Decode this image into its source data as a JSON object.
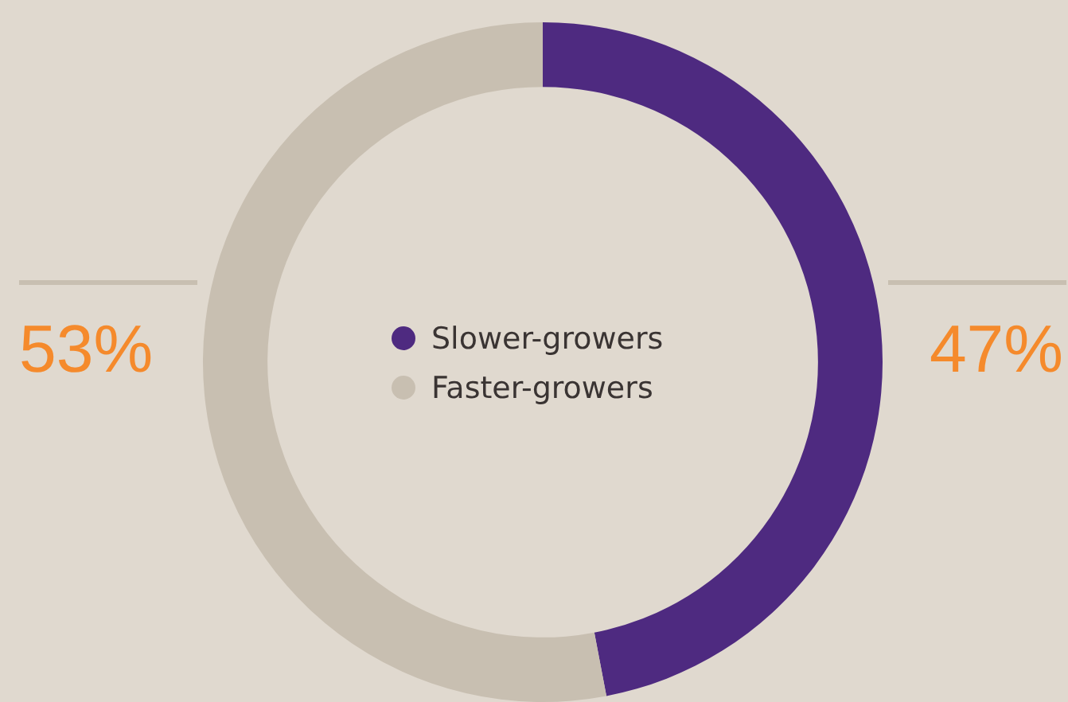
{
  "chart_data": {
    "type": "donut",
    "categories": [
      "Slower-growers",
      "Faster-growers"
    ],
    "values": [
      47,
      53
    ],
    "colors": [
      "#4e2a80",
      "#c8bfb1"
    ],
    "legend": "center",
    "value_labels": [
      "47%",
      "53%"
    ]
  }
}
